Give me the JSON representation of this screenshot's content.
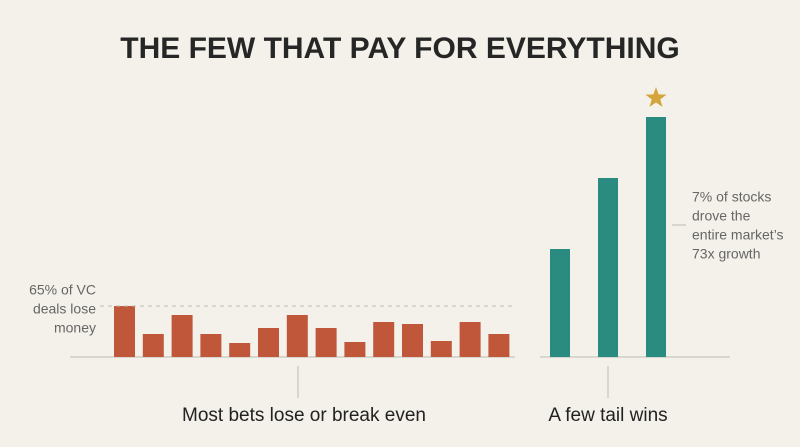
{
  "chart_data": {
    "type": "bar",
    "title": "THE FEW THAT PAY FOR EVERYTHING",
    "groups": [
      {
        "label": "Most bets lose or break even",
        "color": "#c0563a",
        "values": [
          51,
          23,
          42,
          23,
          14,
          29,
          42,
          29,
          15,
          35,
          33,
          16,
          35,
          23
        ],
        "annotation": [
          "65% of VC",
          "deals lose",
          "money"
        ]
      },
      {
        "label": "A few tail wins",
        "color": "#2a8c80",
        "values": [
          108,
          179,
          240
        ],
        "annotation": [
          "7% of stocks",
          "drove the",
          "entire market’s",
          "73x growth"
        ]
      }
    ],
    "highlight_color": "#d4a53a"
  }
}
